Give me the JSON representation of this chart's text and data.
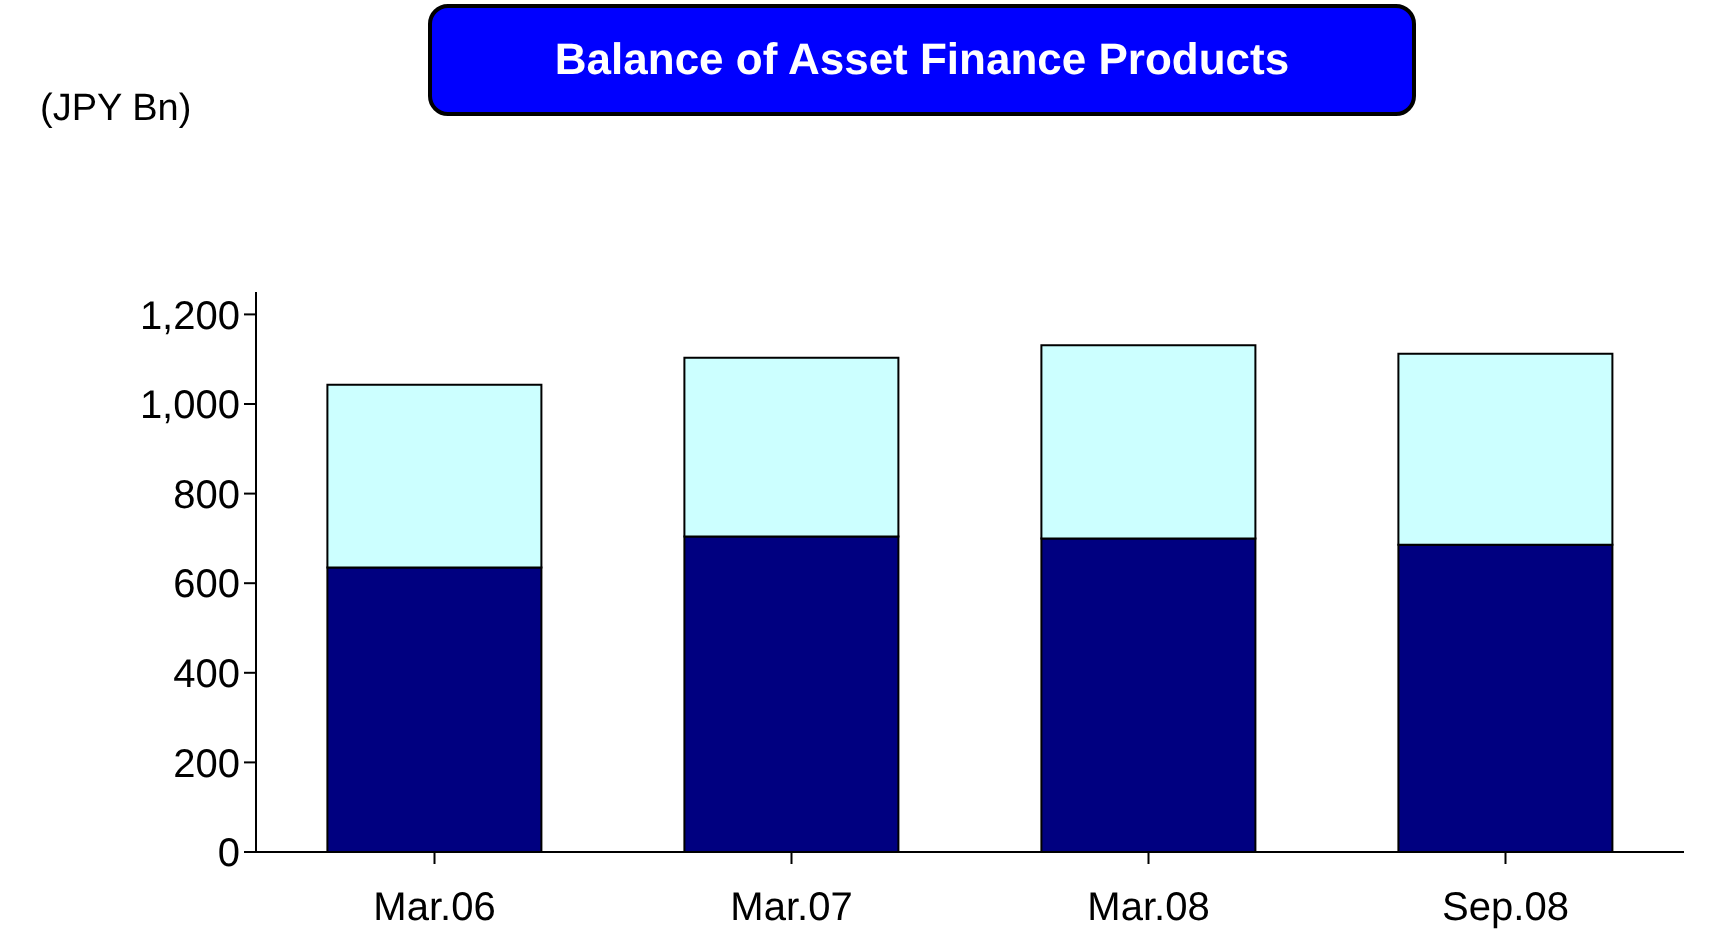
{
  "chart_data": {
    "type": "bar",
    "title": "Balance of Asset Finance Products",
    "ylabel": "(JPY Bn)",
    "categories": [
      "Mar.06",
      "Mar.07",
      "Mar.08",
      "Sep.08"
    ],
    "stacked": true,
    "series": [
      {
        "color": "#000080",
        "values": [
          635,
          704,
          700,
          686
        ]
      },
      {
        "color": "#ccffff",
        "values": [
          408,
          399,
          431,
          426
        ]
      }
    ],
    "ylim": [
      0,
      1250
    ],
    "yticks": [
      0,
      200,
      400,
      600,
      800,
      {
        "value": 1000,
        "label": "1,000"
      },
      {
        "value": 1200,
        "label": "1,200"
      }
    ],
    "grid": false,
    "legend": false
  }
}
